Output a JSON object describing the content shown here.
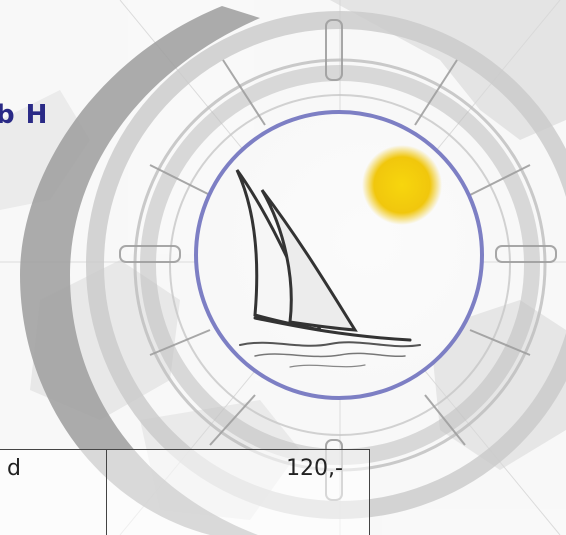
{
  "header": {
    "brand_fragment": "b H"
  },
  "price_table": {
    "rows": [
      {
        "label": "d",
        "price": "120,-"
      }
    ]
  },
  "colors": {
    "brand_text": "#2a2a86",
    "ring_inner": "#7d7fc4",
    "sun": "#f2c500",
    "compass_ring": "#9b9b9b"
  }
}
